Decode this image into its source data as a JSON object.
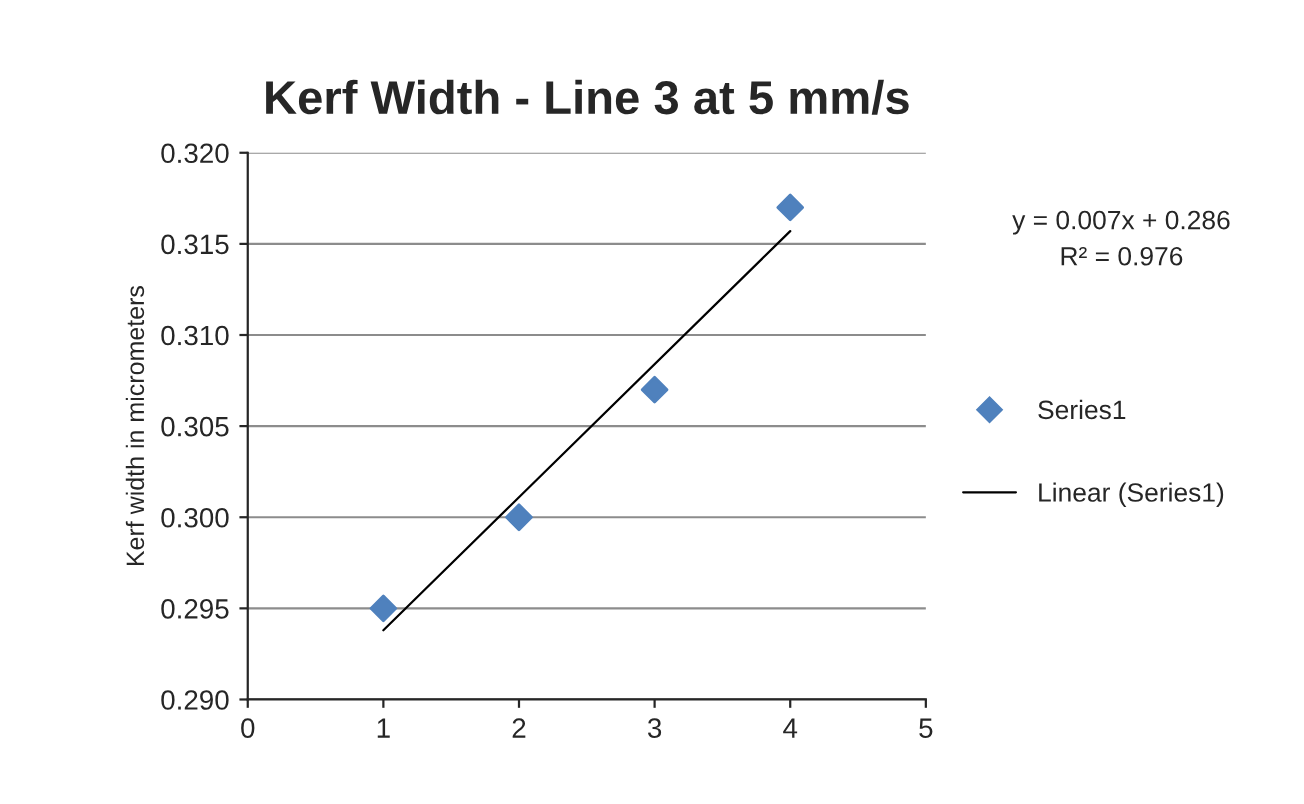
{
  "chart_data": {
    "type": "scatter",
    "title": "Kerf Width - Line 3 at 5 mm/s",
    "ylabel": "Kerf width in micrometers",
    "x": [
      1,
      2,
      3,
      4
    ],
    "series": [
      {
        "name": "Series1",
        "color": "#4f81bd",
        "marker": "diamond",
        "values": [
          0.295,
          0.3,
          0.307,
          0.317
        ]
      },
      {
        "name": "Linear (Series1)",
        "type": "line",
        "color": "#000000",
        "marker": "none",
        "line_style": "solid",
        "x": [
          1,
          4
        ],
        "values": [
          0.2938,
          0.3157
        ]
      }
    ],
    "xlim": [
      0,
      5
    ],
    "xticks": [
      0,
      1,
      2,
      3,
      4,
      5
    ],
    "ylim": [
      0.29,
      0.32
    ],
    "yticks": [
      {
        "value": 0.29,
        "label": "0.290"
      },
      {
        "value": 0.295,
        "label": "0.295"
      },
      {
        "value": 0.3,
        "label": "0.300"
      },
      {
        "value": 0.305,
        "label": "0.305"
      },
      {
        "value": 0.31,
        "label": "0.310"
      },
      {
        "value": 0.315,
        "label": "0.315"
      },
      {
        "value": 0.32,
        "label": "0.320"
      }
    ],
    "annotations": [
      "y = 0.007x + 0.286",
      "R² = 0.976"
    ],
    "grid": "y",
    "legend": "right"
  }
}
